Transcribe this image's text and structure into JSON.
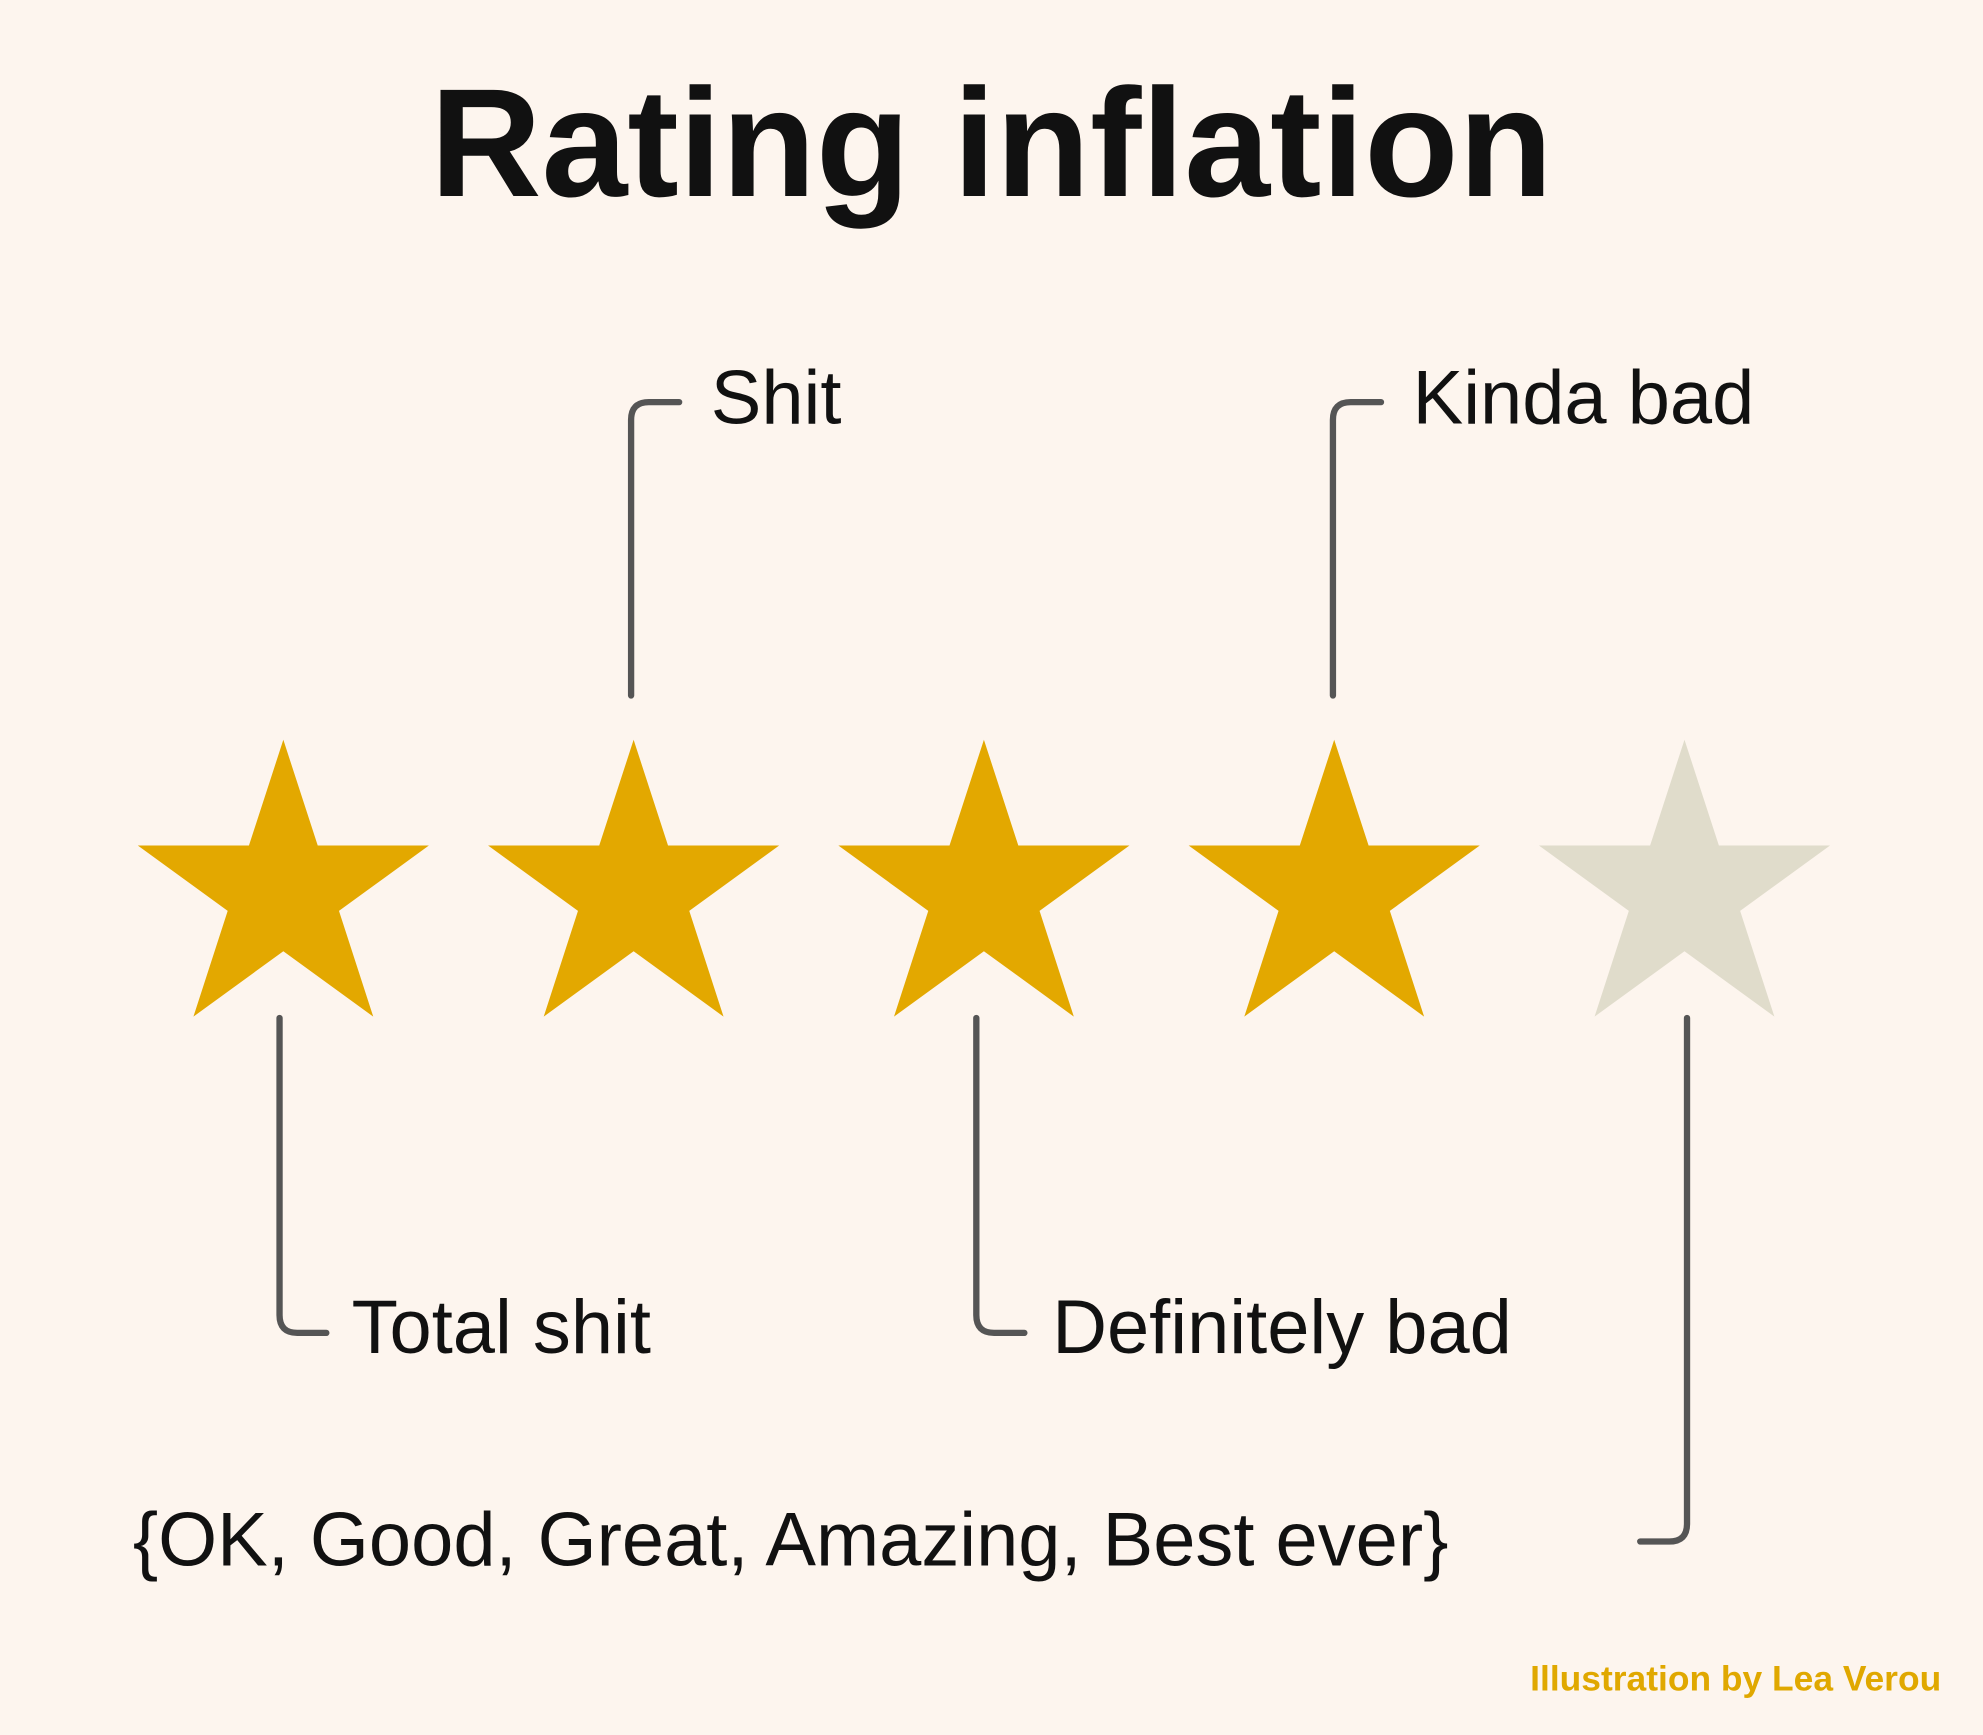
{
  "title": "Rating inflation",
  "labels": [
    "Total shit",
    "Shit",
    "Definitely bad",
    "Kinda bad",
    "{OK, Good, Great, Amazing, Best ever}"
  ],
  "credit": "Illustration by Lea Verou"
}
